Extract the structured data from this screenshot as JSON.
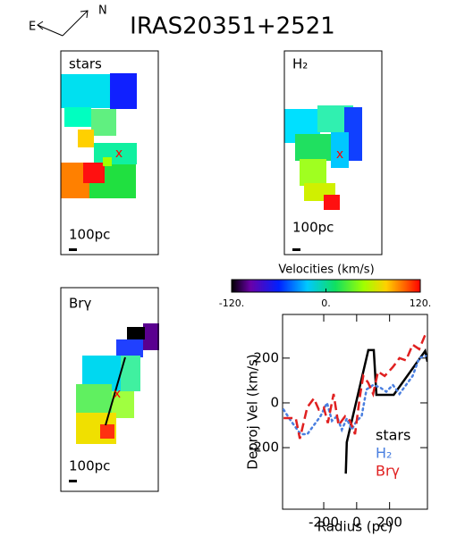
{
  "title": "IRAS20351+2521",
  "compass": {
    "east": "E",
    "north": "N"
  },
  "panels": [
    {
      "label": "stars",
      "scale": "100pc"
    },
    {
      "label": "H₂",
      "scale": "100pc"
    },
    {
      "label": "Brγ",
      "scale": "100pc"
    }
  ],
  "colorbar": {
    "title": "Velocities (km/s)",
    "lim": [
      -120,
      120
    ],
    "ticks": [
      {
        "value": -120,
        "label": "-120."
      },
      {
        "value": 0,
        "label": "0."
      },
      {
        "value": 120,
        "label": "120."
      }
    ]
  },
  "chart_data": {
    "type": "line",
    "xlabel": "Radius (pc)",
    "ylabel": "Deproj Vel (km/s)",
    "xlim": [
      -450,
      430
    ],
    "ylim": [
      -475,
      395
    ],
    "xticks": [
      -200,
      0,
      200
    ],
    "yticks": [
      -200,
      0,
      200
    ],
    "legend": "lower right",
    "series": [
      {
        "name": "stars",
        "color": "#000000",
        "dash": "solid",
        "x": [
          -66,
          -60,
          71,
          104,
          120,
          225,
          416,
          430
        ],
        "values": [
          -316,
          -176,
          236,
          236,
          36,
          36,
          232,
          184
        ]
      },
      {
        "name": "H₂",
        "color": "#4a7fe0",
        "dash": "dotted",
        "x": [
          -444,
          -400,
          -340,
          -300,
          -260,
          -220,
          -180,
          -150,
          -120,
          -90,
          -60,
          -30,
          0,
          30,
          60,
          100,
          140,
          180,
          220,
          260,
          300,
          340,
          380,
          420
        ],
        "values": [
          -30,
          -80,
          -140,
          -140,
          -100,
          -60,
          0,
          -80,
          -60,
          -120,
          -70,
          -120,
          -80,
          -60,
          60,
          80,
          70,
          50,
          80,
          40,
          80,
          120,
          200,
          210
        ]
      },
      {
        "name": "Brγ",
        "color": "#e02020",
        "dash": "dashed",
        "x": [
          -444,
          -370,
          -345,
          -300,
          -260,
          -230,
          -200,
          -175,
          -140,
          -110,
          -70,
          -40,
          -10,
          20,
          40,
          70,
          100,
          130,
          170,
          220,
          260,
          300,
          340,
          380,
          420
        ],
        "values": [
          -68,
          -68,
          -160,
          -20,
          20,
          -30,
          -20,
          -90,
          40,
          -100,
          -60,
          -80,
          -140,
          30,
          120,
          90,
          40,
          140,
          120,
          160,
          200,
          190,
          260,
          240,
          310
        ]
      }
    ]
  }
}
